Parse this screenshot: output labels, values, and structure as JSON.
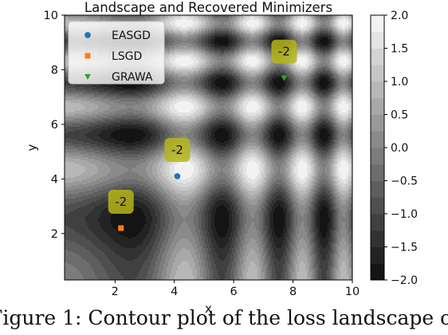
{
  "caption": "Figure 1: Contour plot of the loss landscape o",
  "chart_data": {
    "type": "contour",
    "title": "Landscape and Recovered Minimizers",
    "xlabel": "x",
    "ylabel": "y",
    "xlim": [
      0.3,
      10
    ],
    "ylim": [
      0.3,
      10
    ],
    "x_ticks": [
      "2",
      "4",
      "6",
      "8",
      "10"
    ],
    "y_ticks": [
      "2",
      "4",
      "6",
      "8",
      "10"
    ],
    "x_tick_values": [
      2,
      4,
      6,
      8,
      10
    ],
    "y_tick_values": [
      2,
      4,
      6,
      8,
      10
    ],
    "grid": false,
    "legend_position": "upper left",
    "colormap": "gray",
    "colorbar": {
      "ticks": [
        "2.0",
        "1.5",
        "1.0",
        "0.5",
        "0.0",
        "−0.5",
        "−1.0",
        "−1.5",
        "−2.0"
      ],
      "tick_values": [
        2.0,
        1.5,
        1.0,
        0.5,
        0.0,
        -0.5,
        -1.0,
        -1.5,
        -2.0
      ],
      "range": [
        -2.0,
        2.0
      ],
      "levels": [
        -2.0,
        -1.75,
        -1.5,
        -1.25,
        -1.0,
        -0.75,
        -0.5,
        -0.25,
        0.0,
        0.25,
        0.5,
        0.75,
        1.0,
        1.25,
        1.5,
        1.75,
        2.0
      ]
    },
    "series": [
      {
        "name": "EASGD",
        "marker": "circle",
        "color": "#1f77b4",
        "x": [
          4.1
        ],
        "y": [
          4.1
        ],
        "annotation": "-2"
      },
      {
        "name": "LSGD",
        "marker": "square",
        "color": "#ff7f0e",
        "x": [
          2.2
        ],
        "y": [
          2.2
        ],
        "annotation": "-2"
      },
      {
        "name": "GRAWA",
        "marker": "triangle-down",
        "color": "#2ca02c",
        "x": [
          7.7
        ],
        "y": [
          7.7
        ],
        "annotation": "-2"
      }
    ],
    "annotation_box_color": "#b5b51a"
  }
}
